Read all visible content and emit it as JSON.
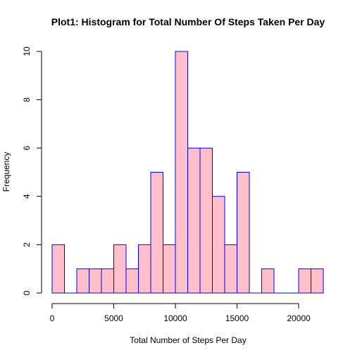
{
  "chart_data": {
    "type": "bar",
    "title": "Plot1: Histogram for Total Number Of Steps Taken Per Day",
    "xlabel": "Total Number of Steps Per Day",
    "ylabel": "Frequency",
    "bin_width": 1000,
    "x_ticks": [
      0,
      5000,
      10000,
      15000,
      20000
    ],
    "y_ticks": [
      0,
      2,
      4,
      6,
      8,
      10
    ],
    "xlim": [
      0,
      22000
    ],
    "ylim": [
      0,
      10
    ],
    "bins": [
      {
        "start": 0,
        "end": 1000,
        "count": 2
      },
      {
        "start": 1000,
        "end": 2000,
        "count": 0
      },
      {
        "start": 2000,
        "end": 3000,
        "count": 1
      },
      {
        "start": 3000,
        "end": 4000,
        "count": 1
      },
      {
        "start": 4000,
        "end": 5000,
        "count": 1
      },
      {
        "start": 5000,
        "end": 6000,
        "count": 2
      },
      {
        "start": 6000,
        "end": 7000,
        "count": 1
      },
      {
        "start": 7000,
        "end": 8000,
        "count": 2
      },
      {
        "start": 8000,
        "end": 9000,
        "count": 5
      },
      {
        "start": 9000,
        "end": 10000,
        "count": 2
      },
      {
        "start": 10000,
        "end": 11000,
        "count": 10
      },
      {
        "start": 11000,
        "end": 12000,
        "count": 6
      },
      {
        "start": 12000,
        "end": 13000,
        "count": 6
      },
      {
        "start": 13000,
        "end": 14000,
        "count": 4
      },
      {
        "start": 14000,
        "end": 15000,
        "count": 2
      },
      {
        "start": 15000,
        "end": 16000,
        "count": 5
      },
      {
        "start": 16000,
        "end": 17000,
        "count": 0
      },
      {
        "start": 17000,
        "end": 18000,
        "count": 1
      },
      {
        "start": 18000,
        "end": 19000,
        "count": 0
      },
      {
        "start": 19000,
        "end": 20000,
        "count": 0
      },
      {
        "start": 20000,
        "end": 21000,
        "count": 1
      },
      {
        "start": 21000,
        "end": 22000,
        "count": 1
      }
    ],
    "bar_fill": "#ffc0cb",
    "bar_stroke": "#0000ff",
    "grid": false,
    "legend": "none"
  }
}
